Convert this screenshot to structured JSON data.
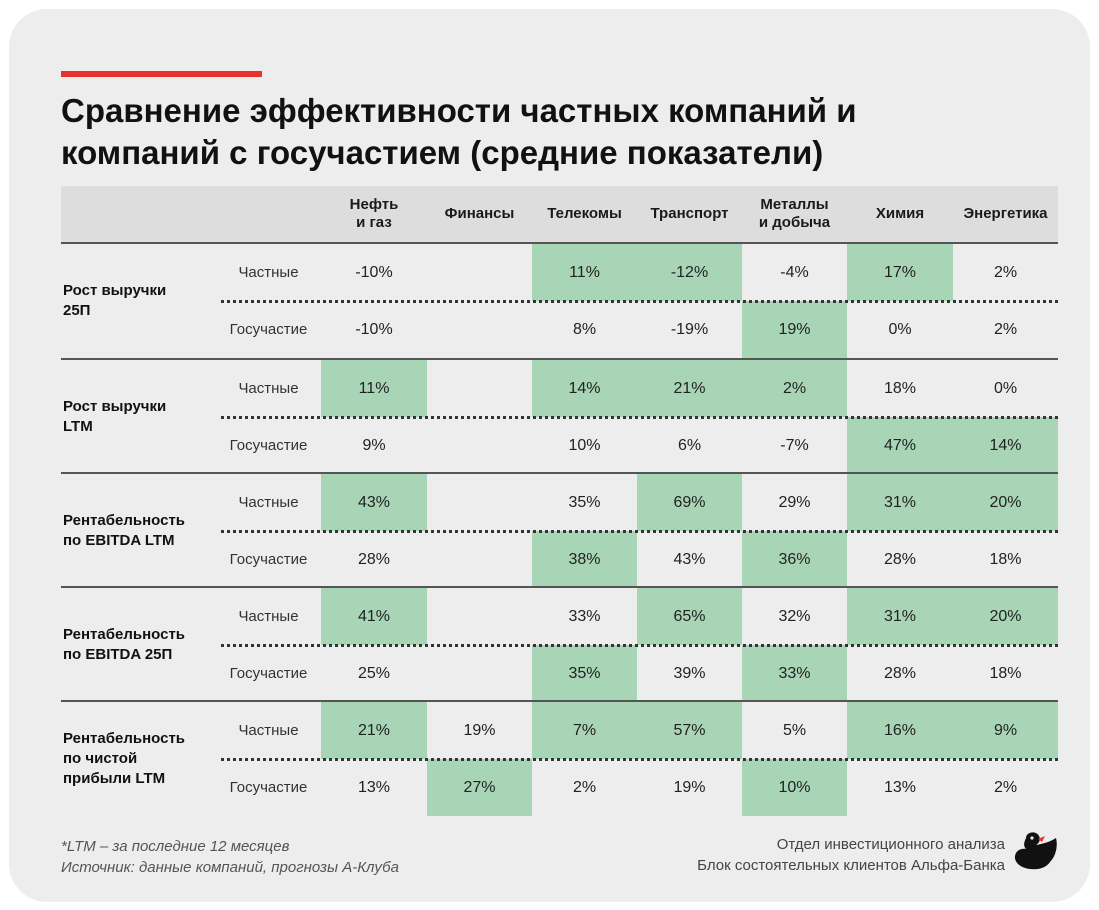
{
  "title_lines": [
    "Сравнение эффективности частных компаний и",
    "компаний с госучастием (средние показатели)"
  ],
  "colors": {
    "accent": "#e8322b",
    "highlight": "#a8d5b5",
    "card": "#ededed",
    "header": "#dddddd"
  },
  "chart_data": {
    "type": "table",
    "columns": [
      [
        "Нефть",
        "и газ"
      ],
      [
        "Финансы"
      ],
      [
        "Телекомы"
      ],
      [
        "Транспорт"
      ],
      [
        "Металлы",
        "и добыча"
      ],
      [
        "Химия"
      ],
      [
        "Энергетика"
      ]
    ],
    "metrics": [
      {
        "label": [
          "Рост выручки",
          "25П"
        ],
        "rows": [
          {
            "type": "Частные",
            "values": [
              "-10%",
              "",
              "11%",
              "-12%",
              "-4%",
              "17%",
              "2%"
            ],
            "highlight": [
              false,
              false,
              true,
              true,
              false,
              true,
              false
            ]
          },
          {
            "type": "Госучастие",
            "values": [
              "-10%",
              "",
              "8%",
              "-19%",
              "19%",
              "0%",
              "2%"
            ],
            "highlight": [
              false,
              false,
              false,
              false,
              true,
              false,
              false
            ]
          }
        ]
      },
      {
        "label": [
          "Рост выручки",
          "LTM"
        ],
        "rows": [
          {
            "type": "Частные",
            "values": [
              "11%",
              "",
              "14%",
              "21%",
              "2%",
              "18%",
              "0%"
            ],
            "highlight": [
              true,
              false,
              true,
              true,
              true,
              false,
              false
            ]
          },
          {
            "type": "Госучастие",
            "values": [
              "9%",
              "",
              "10%",
              "6%",
              "-7%",
              "47%",
              "14%"
            ],
            "highlight": [
              false,
              false,
              false,
              false,
              false,
              true,
              true
            ]
          }
        ]
      },
      {
        "label": [
          "Рентабельность",
          "по EBITDA LTM"
        ],
        "rows": [
          {
            "type": "Частные",
            "values": [
              "43%",
              "",
              "35%",
              "69%",
              "29%",
              "31%",
              "20%"
            ],
            "highlight": [
              true,
              false,
              false,
              true,
              false,
              true,
              true
            ]
          },
          {
            "type": "Госучастие",
            "values": [
              "28%",
              "",
              "38%",
              "43%",
              "36%",
              "28%",
              "18%"
            ],
            "highlight": [
              false,
              false,
              true,
              false,
              true,
              false,
              false
            ]
          }
        ]
      },
      {
        "label": [
          "Рентабельность",
          "по EBITDA 25П"
        ],
        "rows": [
          {
            "type": "Частные",
            "values": [
              "41%",
              "",
              "33%",
              "65%",
              "32%",
              "31%",
              "20%"
            ],
            "highlight": [
              true,
              false,
              false,
              true,
              false,
              true,
              true
            ]
          },
          {
            "type": "Госучастие",
            "values": [
              "25%",
              "",
              "35%",
              "39%",
              "33%",
              "28%",
              "18%"
            ],
            "highlight": [
              false,
              false,
              true,
              false,
              true,
              false,
              false
            ]
          }
        ]
      },
      {
        "label": [
          "Рентабельность",
          "по чистой",
          "прибыли LTM"
        ],
        "rows": [
          {
            "type": "Частные",
            "values": [
              "21%",
              "19%",
              "7%",
              "57%",
              "5%",
              "16%",
              "9%"
            ],
            "highlight": [
              true,
              false,
              true,
              true,
              false,
              true,
              true
            ]
          },
          {
            "type": "Госучастие",
            "values": [
              "13%",
              "27%",
              "2%",
              "19%",
              "10%",
              "13%",
              "2%"
            ],
            "highlight": [
              false,
              true,
              false,
              false,
              true,
              false,
              false
            ]
          }
        ]
      }
    ]
  },
  "footnote": [
    "*LTM – за последние 12 месяцев",
    "Источник: данные компаний, прогнозы А-Клуба"
  ],
  "credit": [
    "Отдел инвестиционного анализа",
    "Блок состоятельных клиентов Альфа-Банка"
  ],
  "logo_icon": "duck-logo-icon"
}
